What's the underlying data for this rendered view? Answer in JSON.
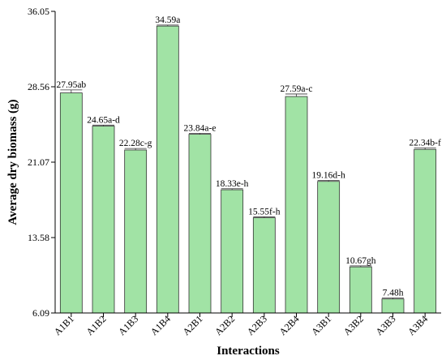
{
  "chart_data": {
    "type": "bar",
    "xlabel": "Interactions",
    "ylabel": "Average dry biomass (g)",
    "categories": [
      "A1B1",
      "A1B2",
      "A1B3",
      "A1B4",
      "A2B1",
      "A2B2",
      "A2B3",
      "A2B4",
      "A3B1",
      "A3B2",
      "A3B3",
      "A3B4"
    ],
    "values": [
      27.95,
      24.65,
      22.28,
      34.59,
      23.84,
      18.33,
      15.55,
      27.59,
      19.16,
      10.67,
      7.48,
      22.34
    ],
    "errors": [
      0.3,
      0.1,
      0.15,
      0.1,
      0.1,
      0.1,
      0.1,
      0.25,
      0.1,
      0.1,
      0.1,
      0.15
    ],
    "data_labels": [
      "27.95ab",
      "24.65a-d",
      "22.28c-g",
      "34.59a",
      "23.84a-e",
      "18.33e-h",
      "15.55f-h",
      "27.59a-c",
      "19.16d-h",
      "10.67gh",
      "7.48h",
      "22.34b-f"
    ],
    "yticks": [
      "6.09",
      "13.58",
      "21.07",
      "28.56",
      "36.05"
    ],
    "ylim": [
      6.09,
      36.05
    ],
    "bar_color": "#a1e3a5",
    "grid": false
  }
}
